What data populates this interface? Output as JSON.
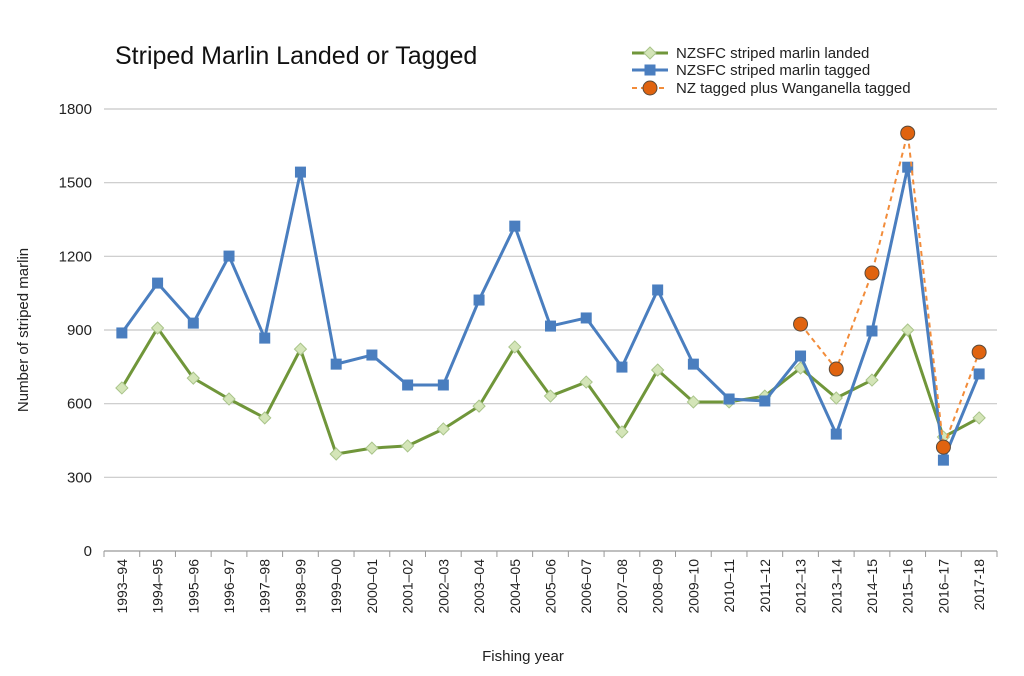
{
  "chart_data": {
    "type": "line",
    "title": "Striped Marlin Landed or Tagged",
    "xlabel": "Fishing year",
    "ylabel": "Number of striped marlin",
    "ylim": [
      0,
      1800
    ],
    "yticks": [
      0,
      300,
      600,
      900,
      1200,
      1500,
      1800
    ],
    "grid": true,
    "legend_position": "top-right",
    "categories": [
      "1993–94",
      "1994–95",
      "1995–96",
      "1996–97",
      "1997–98",
      "1998–99",
      "1999–00",
      "2000–01",
      "2001–02",
      "2002–03",
      "2003–04",
      "2004–05",
      "2005–06",
      "2006–07",
      "2007–08",
      "2008–09",
      "2009–10",
      "2010–11",
      "2011–12",
      "2012–13",
      "2013–14",
      "2014–15",
      "2015–16",
      "2016–17",
      "2017-18"
    ],
    "series": [
      {
        "name": "NZSFC striped marlin landed",
        "color": "#70963a",
        "marker": "diamond",
        "marker_fill": "#d4e5b8",
        "dash": false,
        "values": [
          664,
          908,
          704,
          619,
          542,
          822,
          395,
          419,
          428,
          497,
          590,
          831,
          631,
          688,
          485,
          737,
          607,
          607,
          631,
          745,
          623,
          696,
          900,
          464,
          542
        ]
      },
      {
        "name": "NZSFC striped marlin tagged",
        "color": "#4a7ebf",
        "marker": "square",
        "marker_fill": "#4a7ebf",
        "dash": false,
        "values": [
          888,
          1091,
          928,
          1201,
          867,
          1543,
          761,
          798,
          676,
          676,
          1022,
          1323,
          916,
          949,
          749,
          1063,
          761,
          619,
          611,
          794,
          476,
          896,
          1563,
          370,
          721
        ]
      },
      {
        "name": "NZ tagged plus Wanganella tagged",
        "color": "#f28c3a",
        "marker": "circle",
        "marker_fill": "#e0630f",
        "dash": true,
        "values": [
          null,
          null,
          null,
          null,
          null,
          null,
          null,
          null,
          null,
          null,
          null,
          null,
          null,
          null,
          null,
          null,
          null,
          null,
          null,
          924,
          741,
          1132,
          1702,
          423,
          810
        ]
      }
    ]
  }
}
